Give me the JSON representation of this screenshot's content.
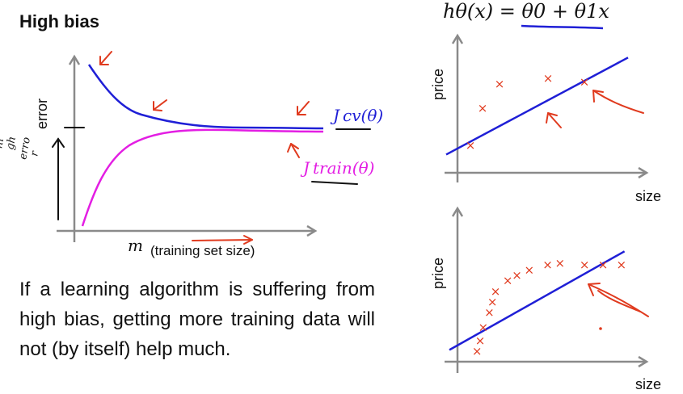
{
  "slide": {
    "title": "High bias",
    "body": "If a learning algorithm is suffering from high bias, getting more training data will not (by itself) help much."
  },
  "learning_curve": {
    "ylabel": "error",
    "xlabel_var": "m",
    "xlabel_text": "(training set size)",
    "cv_label": "J cv(θ)",
    "train_label": "J train(θ)",
    "high_error_note": [
      "hi",
      "gh",
      "erro",
      "r"
    ],
    "colors": {
      "cv": "#1f1fd6",
      "train": "#e31ee3",
      "annotation": "#e03a1e"
    }
  },
  "top_plot": {
    "hypothesis": "hθ(x) = θ0 + θ1x",
    "ylabel": "price",
    "xlabel": "size"
  },
  "bottom_plot": {
    "ylabel": "price",
    "xlabel": "size"
  },
  "chart_data": [
    {
      "type": "line",
      "title": "",
      "xlabel": "m (training set size)",
      "ylabel": "error",
      "series": [
        {
          "name": "Jcv(θ)",
          "x": [
            1,
            2,
            3,
            4,
            5,
            6,
            7,
            8,
            9,
            10
          ],
          "values": [
            0.95,
            0.72,
            0.6,
            0.54,
            0.52,
            0.51,
            0.505,
            0.5,
            0.5,
            0.5
          ]
        },
        {
          "name": "Jtrain(θ)",
          "x": [
            1,
            2,
            3,
            4,
            5,
            6,
            7,
            8,
            9,
            10
          ],
          "values": [
            0.02,
            0.25,
            0.38,
            0.44,
            0.47,
            0.48,
            0.485,
            0.49,
            0.49,
            0.49
          ]
        }
      ]
    },
    {
      "type": "scatter",
      "xlabel": "size",
      "ylabel": "price",
      "points": [
        [
          1.0,
          1.4
        ],
        [
          1.5,
          4.6
        ],
        [
          2.2,
          6.7
        ],
        [
          4.2,
          7.2
        ],
        [
          5.7,
          6.9
        ]
      ],
      "fit_line": [
        [
          0,
          0.6
        ],
        [
          7.5,
          9.0
        ]
      ]
    },
    {
      "type": "scatter",
      "xlabel": "size",
      "ylabel": "price",
      "points": [
        [
          0.9,
          0.3
        ],
        [
          1.0,
          1.1
        ],
        [
          1.1,
          2.1
        ],
        [
          1.3,
          3.2
        ],
        [
          1.4,
          4.0
        ],
        [
          1.5,
          4.8
        ],
        [
          1.9,
          5.6
        ],
        [
          2.2,
          6.0
        ],
        [
          2.6,
          6.4
        ],
        [
          3.2,
          6.8
        ],
        [
          3.6,
          6.9
        ],
        [
          4.4,
          6.8
        ],
        [
          5.0,
          6.8
        ],
        [
          5.6,
          6.8
        ]
      ],
      "fit_line": [
        [
          0,
          0.4
        ],
        [
          5.7,
          7.8
        ]
      ]
    }
  ]
}
